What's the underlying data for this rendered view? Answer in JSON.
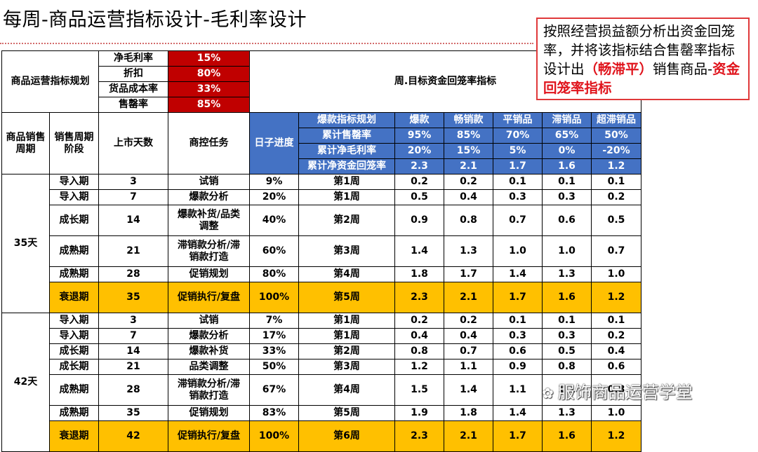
{
  "title": "每周-商品运营指标设计-毛利率设计",
  "note": {
    "text_a": "按照经营损益额分析出资金回笼率，并将该指标结合售罄率指标设计出",
    "highlight_a": "（畅滞平）",
    "text_b": "销售商品-",
    "highlight_b": "资金回笼率指标"
  },
  "planning": {
    "label": "商品运营指标规划",
    "target_label": "周.目标资金回笼率指标",
    "metrics": [
      {
        "label": "净毛利率",
        "value": "15%"
      },
      {
        "label": "折扣",
        "value": "80%"
      },
      {
        "label": "货品成本率",
        "value": "33%"
      },
      {
        "label": "售罄率",
        "value": "85%"
      }
    ]
  },
  "headers": {
    "period": "商品销售周期",
    "stage": "销售周期阶段",
    "days": "上市天数",
    "task": "商控任务",
    "progress": "日子进度",
    "indicator": "爆款指标规划",
    "categories": [
      "爆款",
      "畅销款",
      "平销品",
      "滞销品",
      "超滞销品"
    ],
    "indicator_rows": [
      {
        "label": "累计售罄率",
        "values": [
          "95%",
          "85%",
          "70%",
          "65%",
          "50%"
        ]
      },
      {
        "label": "累计净毛利率",
        "values": [
          "20%",
          "15%",
          "5%",
          "0%",
          "-20%"
        ]
      },
      {
        "label": "累计净资金回笼率",
        "values": [
          "2.3",
          "2.1",
          "1.7",
          "1.6",
          "1.2"
        ]
      }
    ]
  },
  "groups": [
    {
      "period": "35天",
      "rows": [
        {
          "stage": "导入期",
          "days": "3",
          "task": "试销",
          "progress": "9%",
          "week": "第1周",
          "values": [
            "0.2",
            "0.2",
            "0.1",
            "0.1",
            "0.1"
          ]
        },
        {
          "stage": "导入期",
          "days": "7",
          "task": "爆款分析",
          "progress": "20%",
          "week": "第1周",
          "values": [
            "0.5",
            "0.4",
            "0.3",
            "0.3",
            "0.2"
          ]
        },
        {
          "stage": "成长期",
          "days": "14",
          "task": "爆款补货/品类调整",
          "progress": "40%",
          "week": "第2周",
          "values": [
            "0.9",
            "0.8",
            "0.7",
            "0.6",
            "0.5"
          ]
        },
        {
          "stage": "成熟期",
          "days": "21",
          "task": "滞销款分析/滞销款打造",
          "progress": "60%",
          "week": "第3周",
          "values": [
            "1.4",
            "1.3",
            "1.0",
            "1.0",
            "0.7"
          ]
        },
        {
          "stage": "成熟期",
          "days": "28",
          "task": "促销规划",
          "progress": "80%",
          "week": "第4周",
          "values": [
            "1.8",
            "1.7",
            "1.4",
            "1.3",
            "1.0"
          ]
        },
        {
          "stage": "衰退期",
          "days": "35",
          "task": "促销执行/复盘",
          "progress": "100%",
          "week": "第5周",
          "values": [
            "2.3",
            "2.1",
            "1.7",
            "1.6",
            "1.2"
          ]
        }
      ]
    },
    {
      "period": "42天",
      "rows": [
        {
          "stage": "导入期",
          "days": "3",
          "task": "试销",
          "progress": "7%",
          "week": "第1周",
          "values": [
            "0.2",
            "0.2",
            "0.1",
            "0.1",
            "0.1"
          ]
        },
        {
          "stage": "导入期",
          "days": "7",
          "task": "爆款分析",
          "progress": "17%",
          "week": "第1周",
          "values": [
            "0.4",
            "0.4",
            "0.3",
            "0.3",
            "0.2"
          ]
        },
        {
          "stage": "成长期",
          "days": "14",
          "task": "爆款补货",
          "progress": "33%",
          "week": "第2周",
          "values": [
            "0.8",
            "0.7",
            "0.6",
            "0.5",
            "0.4"
          ]
        },
        {
          "stage": "成长期",
          "days": "21",
          "task": "品类调整",
          "progress": "50%",
          "week": "第3周",
          "values": [
            "1.2",
            "1.1",
            "0.9",
            "0.8",
            "0.6"
          ]
        },
        {
          "stage": "成熟期",
          "days": "28",
          "task": "滞销款分析/滞销款打造",
          "progress": "67%",
          "week": "第4周",
          "values": [
            "1.5",
            "1.4",
            "1.1",
            "1.1",
            "0.8"
          ]
        },
        {
          "stage": "成熟期",
          "days": "35",
          "task": "促销规划",
          "progress": "83%",
          "week": "第5周",
          "values": [
            "1.9",
            "1.8",
            "1.4",
            "1.3",
            "1.0"
          ]
        },
        {
          "stage": "衰退期",
          "days": "42",
          "task": "促销执行/复盘",
          "progress": "100%",
          "week": "第6周",
          "values": [
            "2.3",
            "2.1",
            "1.7",
            "1.6",
            "1.2"
          ]
        }
      ]
    }
  ],
  "watermark": {
    "icon": "wechat-icon",
    "text": "服饰商品运营学堂"
  }
}
